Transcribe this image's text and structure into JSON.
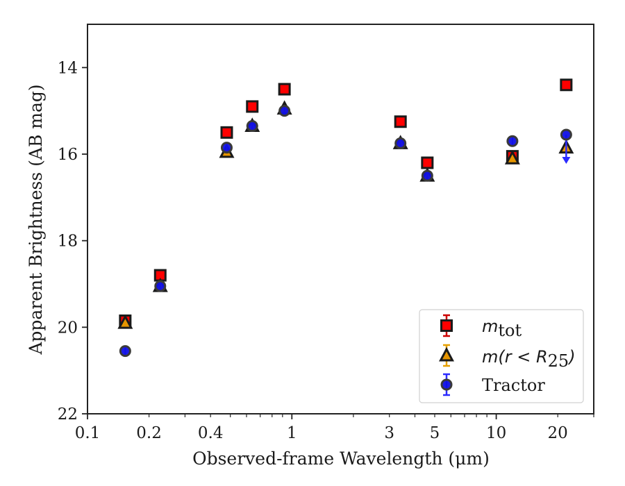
{
  "chart_data": {
    "type": "scatter",
    "xlabel": "Observed-frame Wavelength (μm)",
    "ylabel": "Apparent Brightness (AB mag)",
    "xscale": "log",
    "yaxis_inverted": true,
    "xlim": [
      0.1,
      30
    ],
    "ylim": [
      13,
      22
    ],
    "x_tick_labels": [
      "0.1",
      "0.2",
      "0.4",
      "1",
      "3",
      "5",
      "10",
      "20"
    ],
    "y_tick_labels": [
      "14",
      "16",
      "18",
      "20",
      "22"
    ],
    "legend_position": "lower-right",
    "series": [
      {
        "name": "m_tot",
        "label_math": "m",
        "label_sub": "tot",
        "marker": "square",
        "fill_color": "#ff0000",
        "edge_color": "#1a1a1a",
        "errorbar_color": "#cc0000",
        "x": [
          0.153,
          0.227,
          0.48,
          0.64,
          0.92,
          3.4,
          4.6,
          12.0,
          22.0
        ],
        "y": [
          19.85,
          18.8,
          15.5,
          14.9,
          14.5,
          15.25,
          16.2,
          16.05,
          14.4
        ]
      },
      {
        "name": "m(r < R25)",
        "label_math": "m(r < R",
        "label_sub": "25",
        "label_tail": ")",
        "marker": "triangle",
        "fill_color": "#e69500",
        "edge_color": "#1a1a1a",
        "errorbar_color": "#e6a000",
        "x": [
          0.153,
          0.227,
          0.48,
          0.64,
          0.92,
          3.4,
          4.6,
          12.0,
          22.0
        ],
        "y": [
          19.9,
          19.05,
          15.95,
          15.35,
          14.95,
          15.75,
          16.5,
          16.1,
          15.85
        ]
      },
      {
        "name": "Tractor",
        "marker": "circle",
        "fill_color": "#1010e6",
        "edge_color": "#3a3a3a",
        "errorbar_color": "#2b2bff",
        "x": [
          0.153,
          0.227,
          0.48,
          0.64,
          0.92,
          3.4,
          4.6,
          12.0,
          22.0
        ],
        "y": [
          20.55,
          19.05,
          15.85,
          15.35,
          15.0,
          15.75,
          16.5,
          15.7,
          15.55
        ],
        "upper_limit_arrows": [
          22.0
        ]
      }
    ]
  }
}
